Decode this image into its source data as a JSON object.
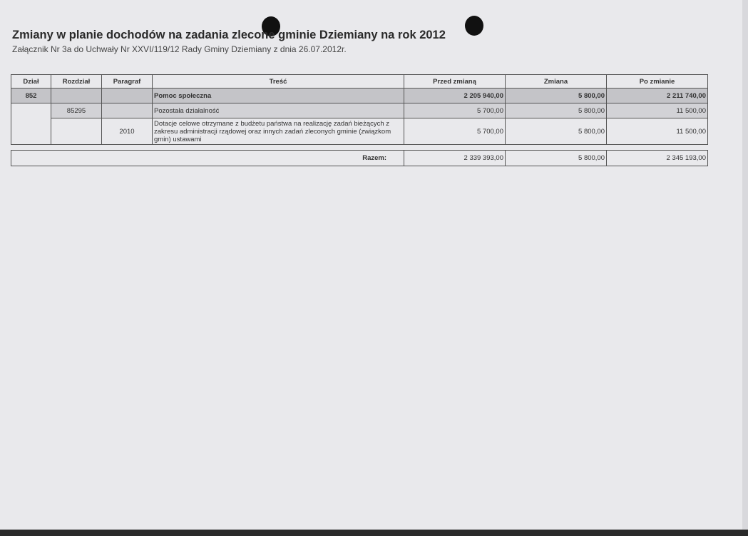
{
  "document": {
    "title": "Zmiany w planie dochodów na zadania zlecone gminie Dziemiany na rok 2012",
    "subtitle": "Załącznik Nr 3a do Uchwały Nr XXVI/119/12 Rady Gminy Dziemiany z dnia 26.07.2012r."
  },
  "table": {
    "headers": [
      "Dział",
      "Rozdział",
      "Paragraf",
      "Treść",
      "Przed zmianą",
      "Zmiana",
      "Po zmianie"
    ],
    "rows": [
      {
        "dzial": "852",
        "rozdzial": "",
        "paragraf": "",
        "tresc": "Pomoc społeczna",
        "przed": "2 205 940,00",
        "zmiana": "5 800,00",
        "po": "2 211 740,00"
      },
      {
        "dzial": "",
        "rozdzial": "85295",
        "paragraf": "",
        "tresc": "Pozostała działalność",
        "przed": "5 700,00",
        "zmiana": "5 800,00",
        "po": "11 500,00"
      },
      {
        "dzial": "",
        "rozdzial": "",
        "paragraf": "2010",
        "tresc": "Dotacje celowe otrzymane z budżetu państwa na realizację zadań bieżących z zakresu administracji rządowej oraz innych zadań zleconych gminie (związkom gmin) ustawami",
        "przed": "5 700,00",
        "zmiana": "5 800,00",
        "po": "11 500,00"
      }
    ],
    "total": {
      "label": "Razem:",
      "przed": "2 339 393,00",
      "zmiana": "5 800,00",
      "po": "2 345 193,00"
    }
  }
}
